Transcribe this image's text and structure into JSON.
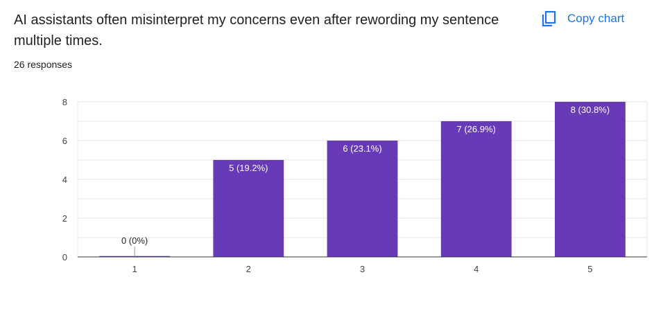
{
  "question": {
    "title": "AI assistants often misinterpret my concerns even after rewording my sentence multiple times.",
    "responses": "26 responses"
  },
  "toolbar": {
    "copy_label": "Copy chart",
    "copy_icon": "copy-icon"
  },
  "colors": {
    "accent": "#1a73e8",
    "bar": "#673ab7",
    "grid": "#e6e6e6",
    "axis": "#333333"
  },
  "chart_data": {
    "type": "bar",
    "categories": [
      "1",
      "2",
      "3",
      "4",
      "5"
    ],
    "values": [
      0,
      5,
      6,
      7,
      8
    ],
    "data_labels": [
      "0 (0%)",
      "5 (19.2%)",
      "6 (23.1%)",
      "7 (26.9%)",
      "8 (30.8%)"
    ],
    "ylim": [
      0,
      8
    ],
    "yticks": [
      0,
      2,
      4,
      6,
      8
    ],
    "grid": true,
    "title": "",
    "xlabel": "",
    "ylabel": ""
  }
}
